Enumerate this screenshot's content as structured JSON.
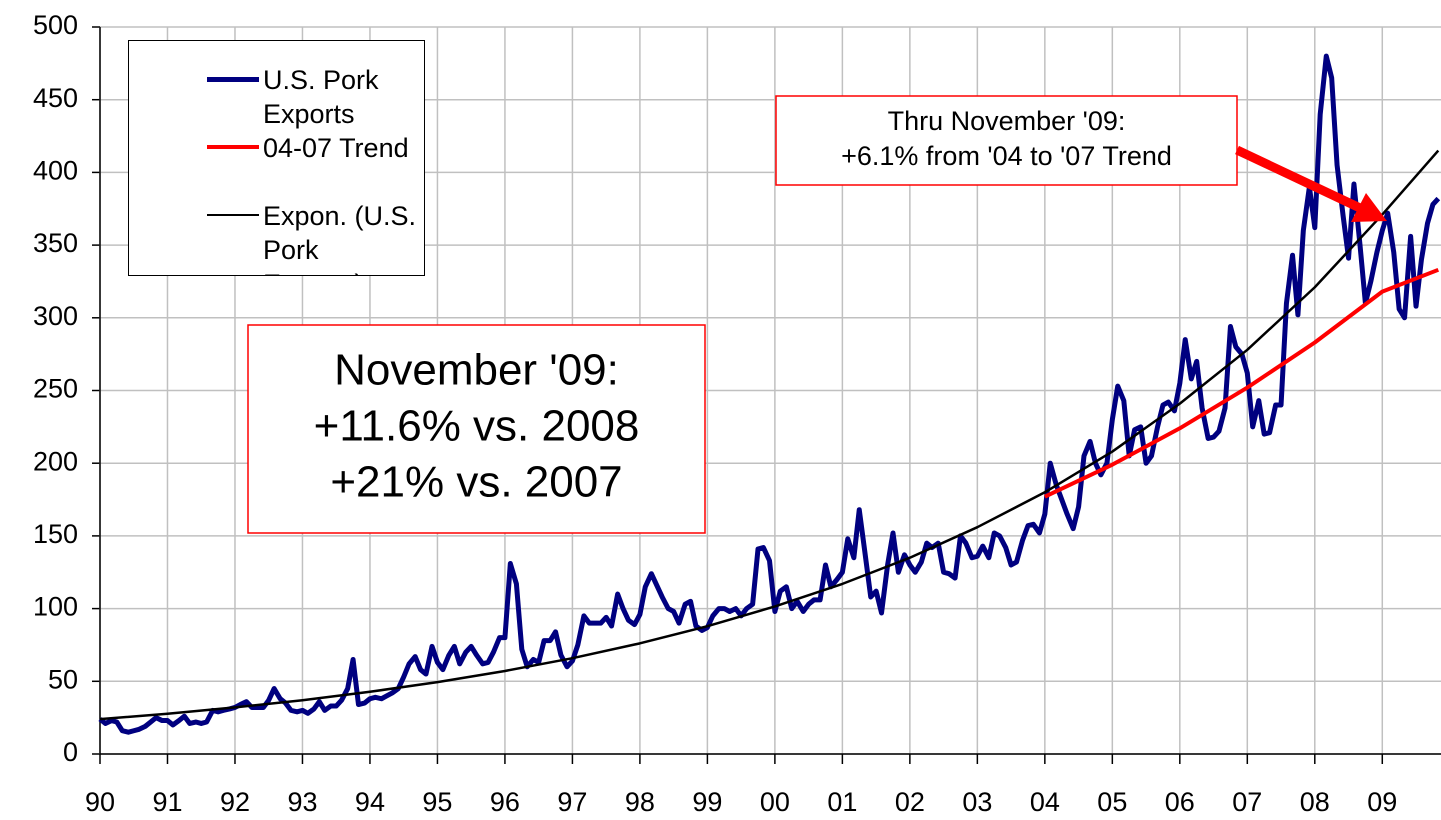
{
  "chart_data": {
    "type": "line",
    "xlim": [
      1990,
      2009.87
    ],
    "ylim": [
      0,
      500
    ],
    "yticks": [
      0,
      50,
      100,
      150,
      200,
      250,
      300,
      350,
      400,
      450,
      500
    ],
    "xticks": [
      {
        "value": 1990,
        "label": "90"
      },
      {
        "value": 1991,
        "label": "91"
      },
      {
        "value": 1992,
        "label": "92"
      },
      {
        "value": 1993,
        "label": "93"
      },
      {
        "value": 1994,
        "label": "94"
      },
      {
        "value": 1995,
        "label": "95"
      },
      {
        "value": 1996,
        "label": "96"
      },
      {
        "value": 1997,
        "label": "97"
      },
      {
        "value": 1998,
        "label": "98"
      },
      {
        "value": 1999,
        "label": "99"
      },
      {
        "value": 2000,
        "label": "00"
      },
      {
        "value": 2001,
        "label": "01"
      },
      {
        "value": 2002,
        "label": "02"
      },
      {
        "value": 2003,
        "label": "03"
      },
      {
        "value": 2004,
        "label": "04"
      },
      {
        "value": 2005,
        "label": "05"
      },
      {
        "value": 2006,
        "label": "06"
      },
      {
        "value": 2007,
        "label": "07"
      },
      {
        "value": 2008,
        "label": "08"
      },
      {
        "value": 2009,
        "label": "09"
      }
    ],
    "grid": true,
    "series": [
      {
        "name": "U.S. Pork Exports",
        "color": "#000080",
        "width": 5,
        "x": [
          1990,
          1990.08,
          1990.17,
          1990.25,
          1990.33,
          1990.42,
          1990.5,
          1990.58,
          1990.67,
          1990.75,
          1990.83,
          1990.92,
          1991,
          1991.08,
          1991.17,
          1991.25,
          1991.33,
          1991.42,
          1991.5,
          1991.58,
          1991.67,
          1991.75,
          1991.83,
          1991.92,
          1992,
          1992.08,
          1992.17,
          1992.25,
          1992.33,
          1992.42,
          1992.5,
          1992.58,
          1992.67,
          1992.75,
          1992.83,
          1992.92,
          1993,
          1993.08,
          1993.17,
          1993.25,
          1993.33,
          1993.42,
          1993.5,
          1993.58,
          1993.67,
          1993.75,
          1993.83,
          1993.92,
          1994,
          1994.08,
          1994.17,
          1994.25,
          1994.33,
          1994.42,
          1994.5,
          1994.58,
          1994.67,
          1994.75,
          1994.83,
          1994.92,
          1995,
          1995.08,
          1995.17,
          1995.25,
          1995.33,
          1995.42,
          1995.5,
          1995.58,
          1995.67,
          1995.75,
          1995.83,
          1995.92,
          1996,
          1996.08,
          1996.17,
          1996.25,
          1996.33,
          1996.42,
          1996.5,
          1996.58,
          1996.67,
          1996.75,
          1996.83,
          1996.92,
          1997,
          1997.08,
          1997.17,
          1997.25,
          1997.33,
          1997.42,
          1997.5,
          1997.58,
          1997.67,
          1997.75,
          1997.83,
          1997.92,
          1998,
          1998.08,
          1998.17,
          1998.25,
          1998.33,
          1998.42,
          1998.5,
          1998.58,
          1998.67,
          1998.75,
          1998.83,
          1998.92,
          1999,
          1999.08,
          1999.17,
          1999.25,
          1999.33,
          1999.42,
          1999.5,
          1999.58,
          1999.67,
          1999.75,
          1999.83,
          1999.92,
          2000,
          2000.08,
          2000.17,
          2000.25,
          2000.33,
          2000.42,
          2000.5,
          2000.58,
          2000.67,
          2000.75,
          2000.83,
          2000.92,
          2001,
          2001.08,
          2001.17,
          2001.25,
          2001.33,
          2001.42,
          2001.5,
          2001.58,
          2001.67,
          2001.75,
          2001.83,
          2001.92,
          2002,
          2002.08,
          2002.17,
          2002.25,
          2002.33,
          2002.42,
          2002.5,
          2002.58,
          2002.67,
          2002.75,
          2002.83,
          2002.92,
          2003,
          2003.08,
          2003.17,
          2003.25,
          2003.33,
          2003.42,
          2003.5,
          2003.58,
          2003.67,
          2003.75,
          2003.83,
          2003.92,
          2004,
          2004.08,
          2004.17,
          2004.25,
          2004.33,
          2004.42,
          2004.5,
          2004.58,
          2004.67,
          2004.75,
          2004.83,
          2004.92,
          2005,
          2005.08,
          2005.17,
          2005.25,
          2005.33,
          2005.42,
          2005.5,
          2005.58,
          2005.67,
          2005.75,
          2005.83,
          2005.92,
          2006,
          2006.08,
          2006.17,
          2006.25,
          2006.33,
          2006.42,
          2006.5,
          2006.58,
          2006.67,
          2006.75,
          2006.83,
          2006.92,
          2007,
          2007.08,
          2007.17,
          2007.25,
          2007.33,
          2007.42,
          2007.5,
          2007.58,
          2007.67,
          2007.75,
          2007.83,
          2007.92,
          2008,
          2008.08,
          2008.17,
          2008.25,
          2008.33,
          2008.42,
          2008.5,
          2008.58,
          2008.67,
          2008.75,
          2008.83,
          2008.92,
          2009,
          2009.08,
          2009.17,
          2009.25,
          2009.33,
          2009.42,
          2009.5,
          2009.58,
          2009.67,
          2009.75,
          2009.83
        ],
        "values": [
          24,
          21,
          23,
          22,
          16,
          15,
          16,
          17,
          19,
          22,
          25,
          23,
          23,
          20,
          23,
          26,
          21,
          22,
          21,
          22,
          30,
          29,
          30,
          31,
          32,
          34,
          36,
          32,
          32,
          32,
          37,
          45,
          38,
          35,
          30,
          29,
          30,
          28,
          31,
          36,
          30,
          33,
          33,
          37,
          45,
          65,
          34,
          35,
          38,
          39,
          38,
          40,
          42,
          45,
          53,
          62,
          67,
          58,
          55,
          74,
          63,
          58,
          68,
          74,
          62,
          70,
          74,
          68,
          62,
          63,
          70,
          80,
          80,
          131,
          117,
          72,
          60,
          65,
          63,
          78,
          78,
          84,
          68,
          60,
          64,
          75,
          95,
          90,
          90,
          90,
          94,
          88,
          110,
          100,
          92,
          89,
          96,
          115,
          124,
          116,
          108,
          100,
          98,
          90,
          103,
          105,
          88,
          85,
          87,
          95,
          100,
          100,
          98,
          100,
          95,
          100,
          103,
          141,
          142,
          133,
          98,
          112,
          115,
          100,
          105,
          98,
          103,
          106,
          106,
          130,
          115,
          120,
          125,
          148,
          135,
          168,
          140,
          108,
          112,
          97,
          130,
          152,
          125,
          137,
          130,
          125,
          132,
          145,
          142,
          145,
          125,
          124,
          121,
          150,
          145,
          135,
          136,
          143,
          135,
          152,
          150,
          142,
          130,
          132,
          147,
          157,
          158,
          152,
          165,
          200,
          185,
          175,
          165,
          155,
          170,
          205,
          215,
          200,
          192,
          200,
          230,
          253,
          243,
          205,
          223,
          225,
          200,
          205,
          225,
          240,
          242,
          236,
          255,
          285,
          258,
          270,
          238,
          217,
          218,
          222,
          238,
          294,
          280,
          275,
          262,
          225,
          243,
          220,
          221,
          240,
          240,
          310,
          343,
          302,
          360,
          390,
          362,
          440,
          480,
          465,
          405,
          370,
          341,
          392,
          350,
          310,
          325,
          345,
          360,
          372,
          345,
          306,
          300,
          356,
          308,
          340,
          365,
          378,
          382
        ]
      },
      {
        "name": "04-07 Trend",
        "color": "#ff0000",
        "width": 4,
        "x": [
          2004,
          2005,
          2006,
          2007,
          2008,
          2009,
          2009.83
        ],
        "values": [
          177,
          199,
          224,
          252,
          283,
          318,
          333
        ]
      },
      {
        "name": "Expon. (U.S. Pork Exports)",
        "color": "#000000",
        "width": 2.5,
        "x": [
          1990,
          1991,
          1992,
          1993,
          1994,
          1995,
          1996,
          1997,
          1998,
          1999,
          2000,
          2001,
          2002,
          2003,
          2004,
          2005,
          2006,
          2007,
          2008,
          2009,
          2009.83
        ],
        "values": [
          24,
          27.7,
          32.1,
          37,
          42.8,
          49.4,
          57.1,
          65.9,
          76.1,
          87.9,
          101.5,
          117,
          135,
          156,
          180,
          208,
          241,
          278,
          321,
          371,
          415
        ]
      }
    ],
    "annotations": [
      {
        "lines": [
          "November '09:",
          "+11.6% vs. 2008",
          "+21% vs. 2007"
        ]
      },
      {
        "lines": [
          "Thru November '09:",
          "+6.1% from '04 to '07 Trend"
        ]
      }
    ]
  }
}
